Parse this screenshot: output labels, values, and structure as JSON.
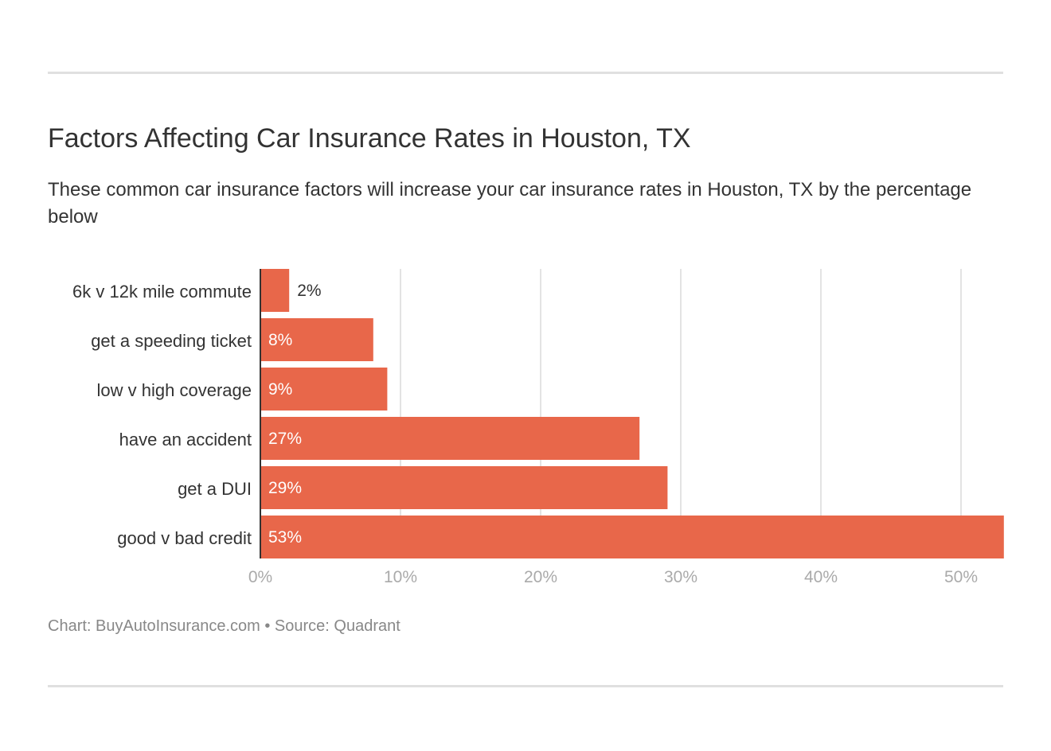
{
  "chart_data": {
    "type": "bar",
    "orientation": "horizontal",
    "title": "Factors Affecting Car Insurance Rates in Houston, TX",
    "subtitle": "These common car insurance factors will increase your car insurance rates in Houston, TX by the percentage below",
    "categories": [
      "6k v 12k mile commute",
      "get a speeding ticket",
      "low v high coverage",
      "have an accident",
      "get a DUI",
      "good v bad credit"
    ],
    "values": [
      2,
      8,
      9,
      27,
      29,
      53
    ],
    "data_labels": [
      "2%",
      "8%",
      "9%",
      "27%",
      "29%",
      "53%"
    ],
    "xlim": [
      0,
      53
    ],
    "x_ticks": [
      0,
      10,
      20,
      30,
      40,
      50
    ],
    "x_tick_labels": [
      "0%",
      "10%",
      "20%",
      "30%",
      "40%",
      "50%"
    ],
    "xlabel": "",
    "ylabel": "",
    "grid": true,
    "bar_color": "#e8674a",
    "footer": "Chart: BuyAutoInsurance.com • Source: Quadrant"
  }
}
